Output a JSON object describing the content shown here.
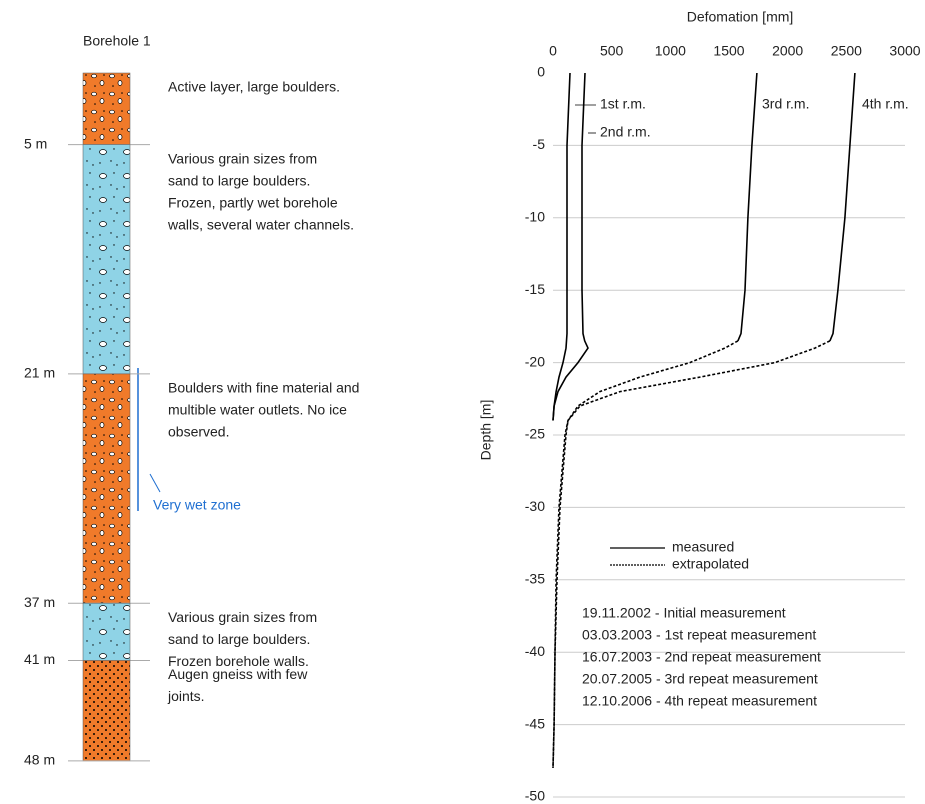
{
  "borehole": {
    "title": "Borehole 1",
    "depth_marks": [
      {
        "value": 5,
        "label": "5 m"
      },
      {
        "value": 21,
        "label": "21 m"
      },
      {
        "value": 37,
        "label": "37 m"
      },
      {
        "value": 41,
        "label": "41 m"
      },
      {
        "value": 48,
        "label": "48 m"
      }
    ],
    "descriptions": [
      [
        "Active layer, large boulders."
      ],
      [
        "Various grain sizes from",
        "sand to large boulders.",
        "Frozen, partly wet borehole",
        "walls, several water channels."
      ],
      [
        "Boulders with fine material and",
        "multible water outlets. No ice",
        "observed."
      ],
      [
        "Various grain sizes from",
        "sand to large boulders.",
        "Frozen borehole walls."
      ],
      [
        "Augen gneiss with few",
        "joints."
      ]
    ],
    "wet_zone": "Very wet zone"
  },
  "chart_data": {
    "type": "line",
    "x_label": "Defomation [mm]",
    "y_label": "Depth [m]",
    "xlim": [
      0,
      3000
    ],
    "xticks": [
      0,
      500,
      1000,
      1500,
      2000,
      2500,
      3000
    ],
    "ylim": [
      0,
      -50
    ],
    "yticks": [
      0,
      -5,
      -10,
      -15,
      -20,
      -25,
      -30,
      -35,
      -40,
      -45,
      -50
    ],
    "grid": true,
    "depths": [
      0,
      -5,
      -10,
      -15,
      -18,
      -18.5,
      -19,
      -20,
      -21,
      -22,
      -23,
      -24,
      -25,
      -30,
      -35,
      -40,
      -45,
      -48
    ],
    "series": [
      {
        "name": "1st r.m.",
        "color": "#000000",
        "values": [
          145,
          119,
          119,
          119,
          119,
          115,
          111,
          85,
          51,
          26,
          9,
          0,
          null,
          null,
          null,
          null,
          null,
          null
        ],
        "extrapolated": [
          null,
          null,
          null,
          null,
          null,
          null,
          null,
          null,
          null,
          null,
          null,
          null,
          null,
          null,
          null,
          null,
          null,
          null
        ]
      },
      {
        "name": "2nd r.m.",
        "color": "#000000",
        "values": [
          273,
          247,
          247,
          247,
          256,
          270,
          298,
          213,
          111,
          43,
          9,
          0,
          null,
          null,
          null,
          null,
          null,
          null
        ],
        "extrapolated": [
          null,
          null,
          null,
          null,
          null,
          null,
          null,
          null,
          null,
          null,
          null,
          null,
          null,
          null,
          null,
          null,
          null,
          null
        ]
      },
      {
        "name": "3rd r.m.",
        "color": "#000000",
        "values": [
          1738,
          1695,
          1661,
          1636,
          1602,
          1576,
          null,
          null,
          null,
          null,
          null,
          null,
          null,
          null,
          null,
          null,
          null,
          null
        ],
        "extrapolated": [
          null,
          null,
          null,
          null,
          null,
          1576,
          1465,
          1167,
          741,
          400,
          213,
          128,
          102,
          51,
          26,
          17,
          9,
          0
        ]
      },
      {
        "name": "4th r.m.",
        "color": "#000000",
        "values": [
          2573,
          2530,
          2488,
          2428,
          2386,
          2360,
          null,
          null,
          null,
          null,
          null,
          null,
          null,
          null,
          null,
          null,
          null,
          null
        ],
        "extrapolated": [
          null,
          null,
          null,
          null,
          null,
          2360,
          2232,
          1891,
          1252,
          571,
          230,
          128,
          111,
          60,
          34,
          17,
          9,
          0
        ]
      }
    ],
    "legend": [
      "measured",
      "extrapolated"
    ],
    "notes": [
      "19.11.2002 - Initial measurement",
      "03.03.2003 - 1st repeat measurement",
      "16.07.2003 - 2nd repeat measurement",
      "20.07.2005 - 3rd repeat measurement",
      "12.10.2006 - 4th repeat measurement"
    ]
  }
}
